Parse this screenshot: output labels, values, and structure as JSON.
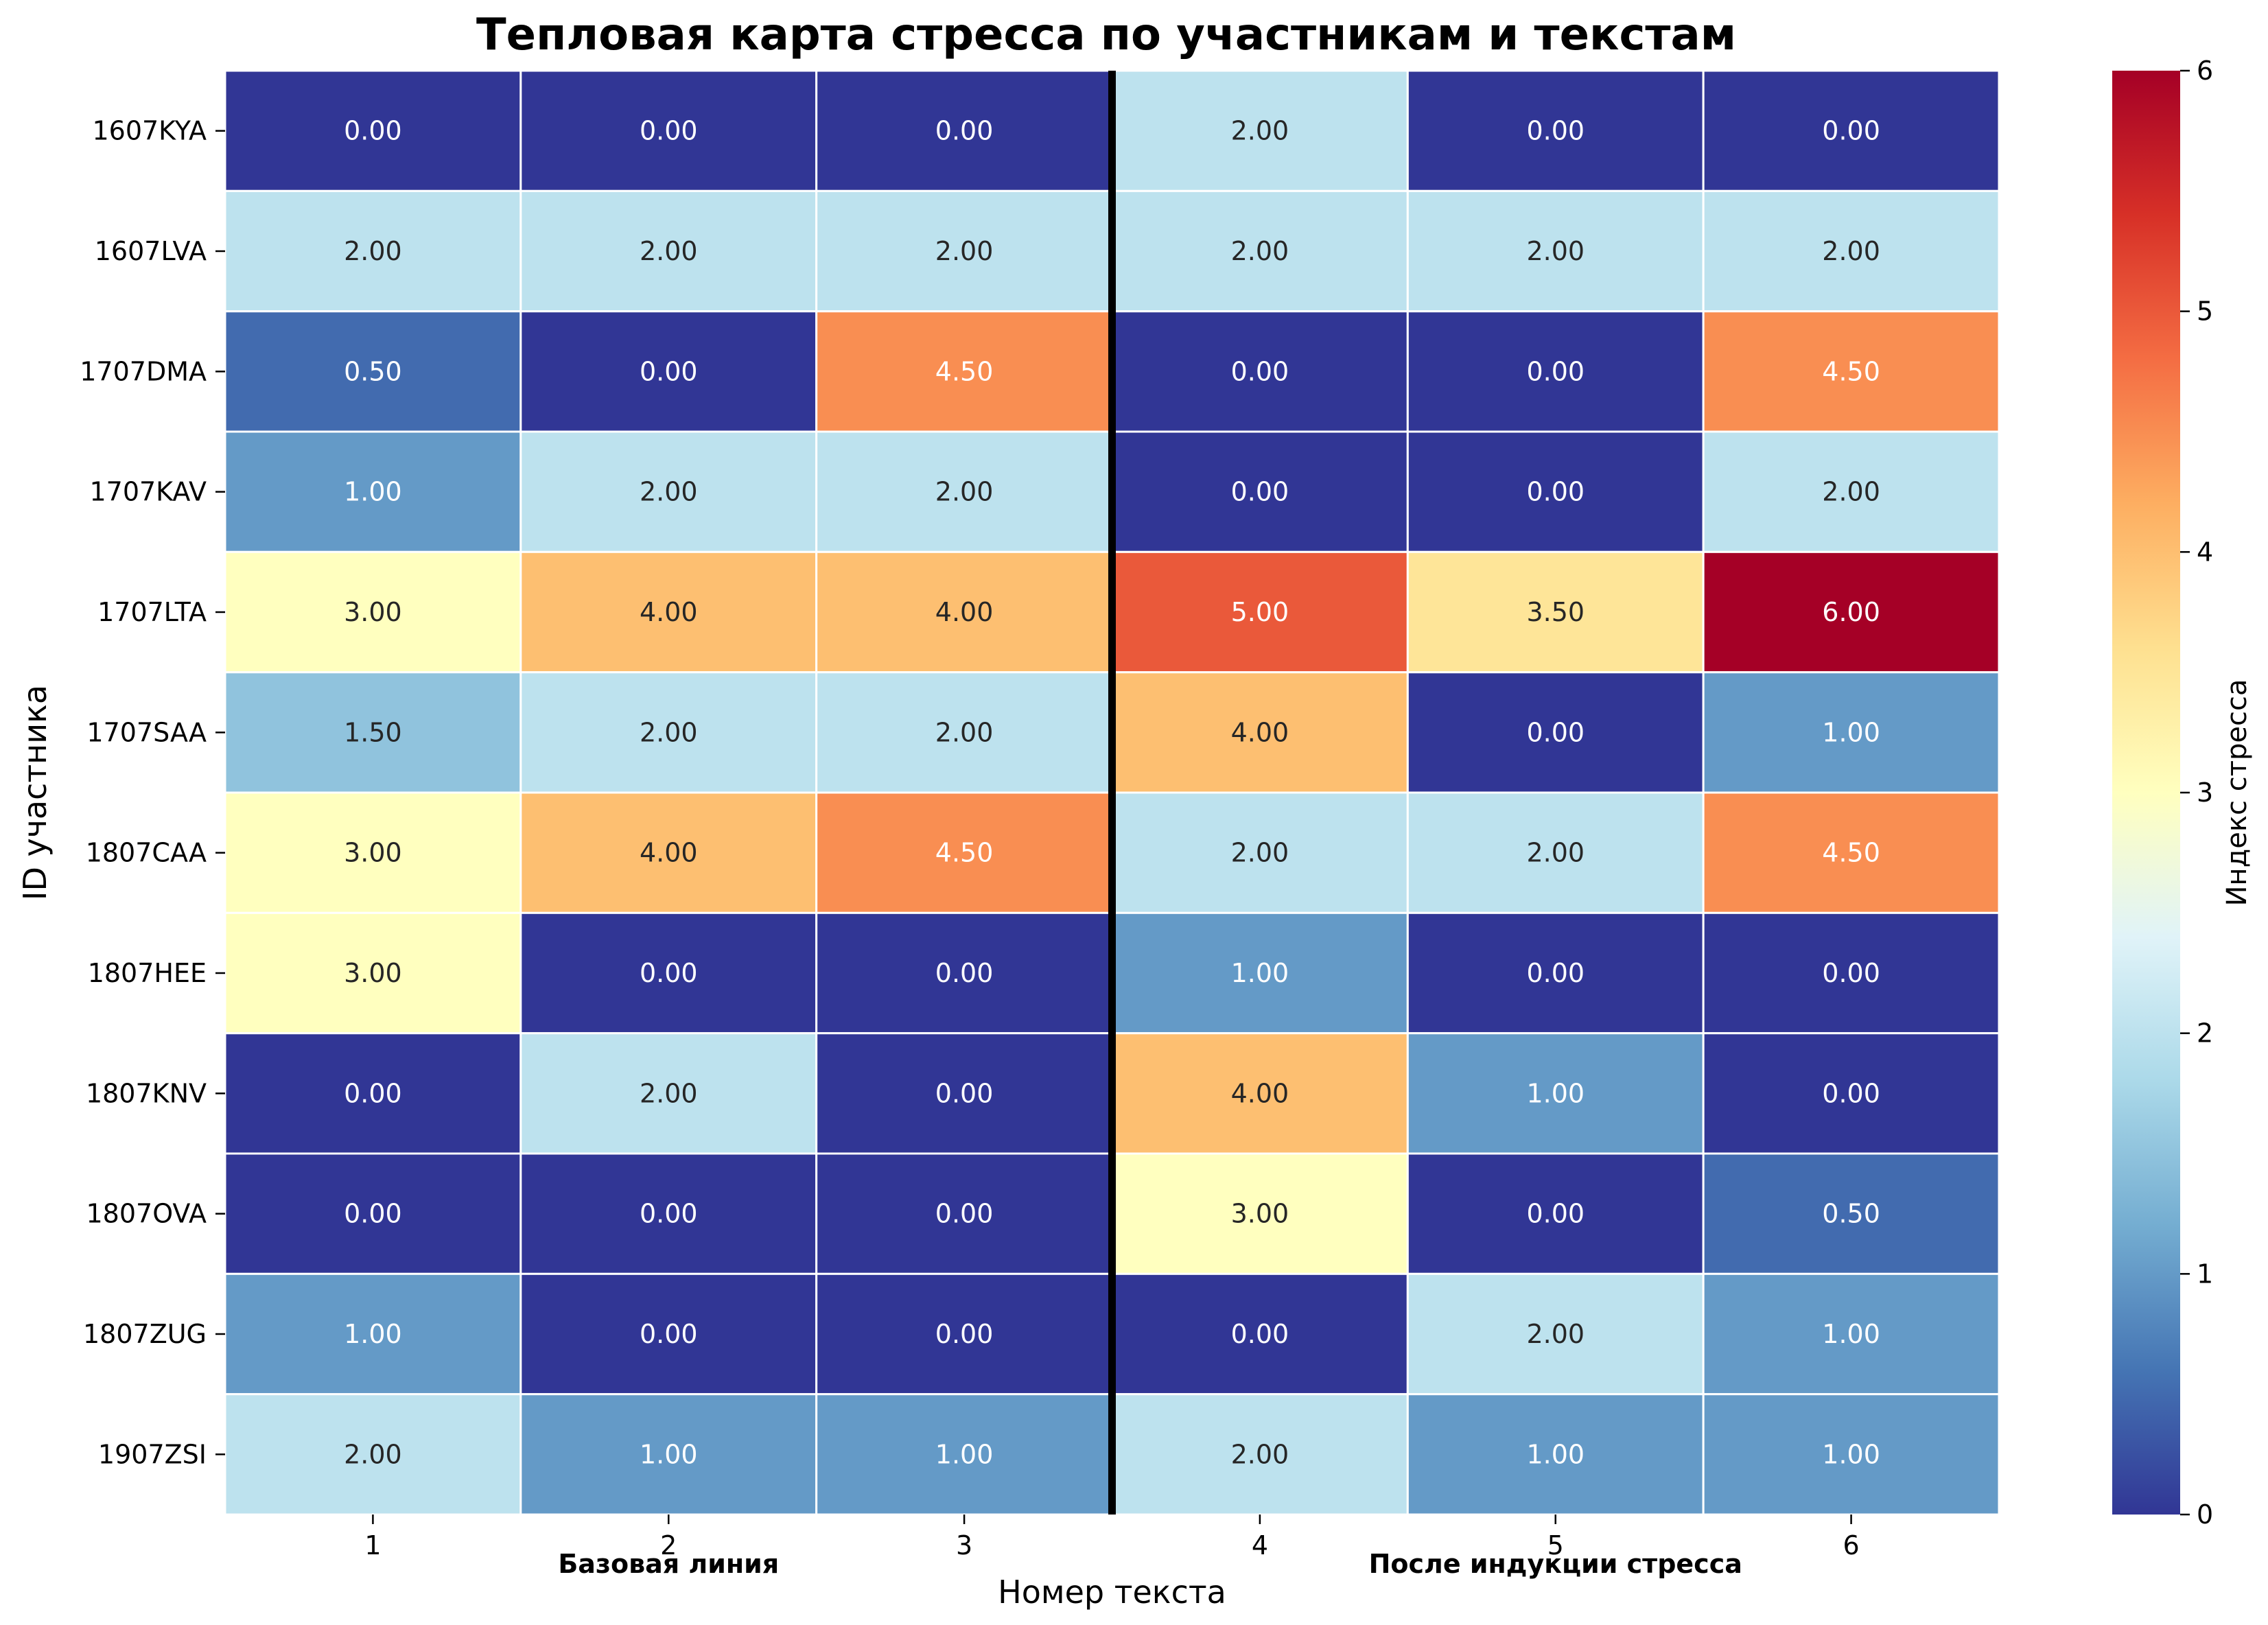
{
  "chart_data": {
    "type": "heatmap",
    "title": "Тепловая карта стресса по участникам и текстам",
    "xlabel": "Номер текста",
    "ylabel": "ID участника",
    "x_categories": [
      "1",
      "2",
      "3",
      "4",
      "5",
      "6"
    ],
    "y_categories": [
      "1607KYA",
      "1607LVA",
      "1707DMA",
      "1707KAV",
      "1707LTA",
      "1707SAA",
      "1807CAA",
      "1807HEE",
      "1807KNV",
      "1807OVA",
      "1807ZUG",
      "1907ZSI"
    ],
    "values": [
      [
        0.0,
        0.0,
        0.0,
        2.0,
        0.0,
        0.0
      ],
      [
        2.0,
        2.0,
        2.0,
        2.0,
        2.0,
        2.0
      ],
      [
        0.5,
        0.0,
        4.5,
        0.0,
        0.0,
        4.5
      ],
      [
        1.0,
        2.0,
        2.0,
        0.0,
        0.0,
        2.0
      ],
      [
        3.0,
        4.0,
        4.0,
        5.0,
        3.5,
        6.0
      ],
      [
        1.5,
        2.0,
        2.0,
        4.0,
        0.0,
        1.0
      ],
      [
        3.0,
        4.0,
        4.5,
        2.0,
        2.0,
        4.5
      ],
      [
        3.0,
        0.0,
        0.0,
        1.0,
        0.0,
        0.0
      ],
      [
        0.0,
        2.0,
        0.0,
        4.0,
        1.0,
        0.0
      ],
      [
        0.0,
        0.0,
        0.0,
        3.0,
        0.0,
        0.5
      ],
      [
        1.0,
        0.0,
        0.0,
        0.0,
        2.0,
        1.0
      ],
      [
        2.0,
        1.0,
        1.0,
        2.0,
        1.0,
        1.0
      ]
    ],
    "value_format": "0.00",
    "colormap": "RdYlBu_r",
    "colormap_stops": [
      "#313695",
      "#4575b4",
      "#74add1",
      "#abd9e9",
      "#e0f3f8",
      "#ffffbf",
      "#fee090",
      "#fdae61",
      "#f46d43",
      "#d73027",
      "#a50026"
    ],
    "vmin": 0,
    "vmax": 6,
    "colorbar": {
      "label": "Индекс стресса",
      "ticks": [
        "0",
        "1",
        "2",
        "3",
        "4",
        "5",
        "6"
      ]
    },
    "group_labels": [
      "Базовая линия",
      "После индукции стресса"
    ],
    "separator_after_column": 3,
    "grid": false
  }
}
